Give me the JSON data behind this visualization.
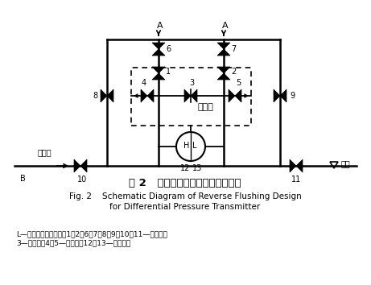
{
  "title_zh": "图 2   差压变送器反冲水设计示意图",
  "title_en1": "Fig. 2    Schematic Diagram of Reverse Flushing Design",
  "title_en2": "for Differential Pressure Transmitter",
  "legend1": "L—压力变送器低压侧；1、2、6、7、8、9、10、11—截止阀；",
  "legend2": "3—平衡阀；4、5—排污阀；12、13—排污丝堡",
  "label_A": "A",
  "label_6": "6",
  "label_7": "7",
  "label_1": "1",
  "label_2": "2",
  "label_3": "3",
  "label_4": "4",
  "label_5": "5",
  "label_8": "8",
  "label_9": "9",
  "label_10": "10",
  "label_11": "11",
  "label_12": "12",
  "label_13": "13",
  "label_B": "B",
  "label_H": "H",
  "label_L": "L",
  "label_wufa": "五阀组",
  "label_fanchongshui": "反冲水",
  "label_dilou": "地漏",
  "bg_color": "#ffffff",
  "line_color": "#000000"
}
